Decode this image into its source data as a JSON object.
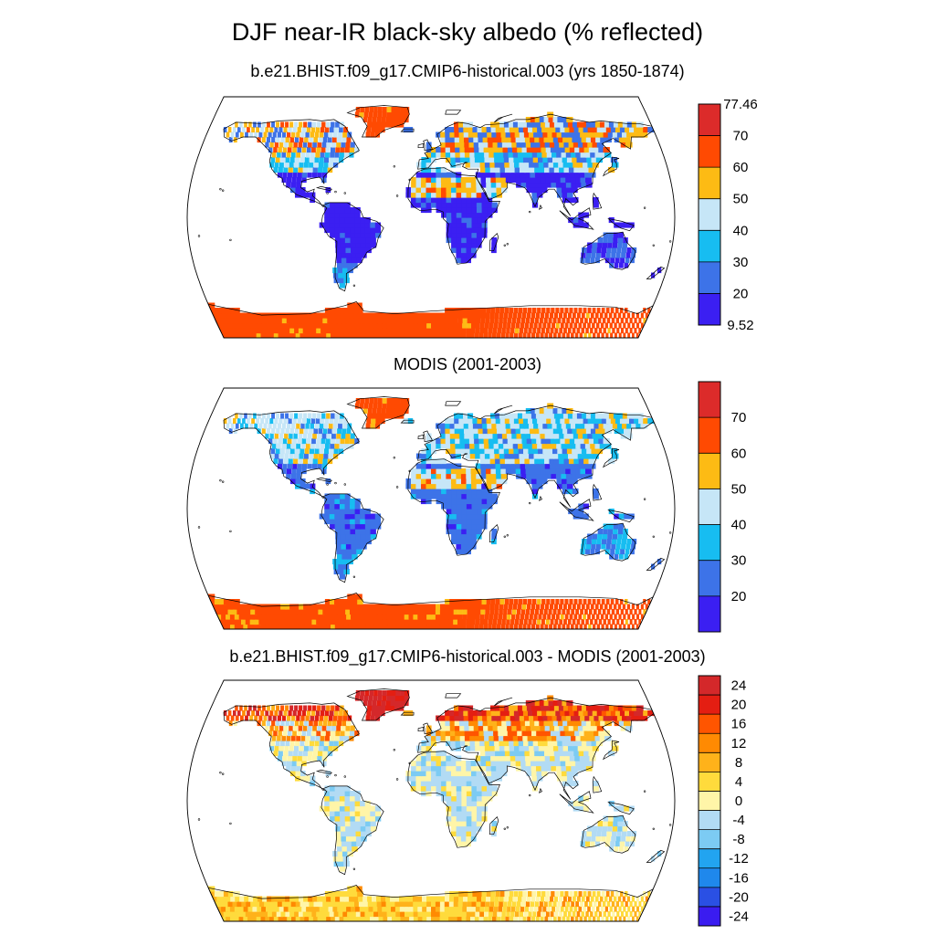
{
  "figure": {
    "title": "DJF near-IR black-sky albedo (% reflected)"
  },
  "panels": [
    {
      "title": "b.e21.BHIST.f09_g17.CMIP6-historical.003 (yrs 1850-1874)",
      "colorbar": {
        "colors": [
          "#3b1ff2",
          "#3d73e8",
          "#17bdf1",
          "#c6e6f7",
          "#fdbb14",
          "#ff4a02",
          "#dc2b2a"
        ],
        "labels": [
          "9.52",
          "20",
          "30",
          "40",
          "50",
          "60",
          "70",
          "77.46"
        ]
      }
    },
    {
      "title": "MODIS (2001-2003)",
      "colorbar": {
        "colors": [
          "#3b1ff2",
          "#3d73e8",
          "#17bdf1",
          "#c6e6f7",
          "#fdbb14",
          "#ff4a02",
          "#dc2b2a"
        ],
        "labels": [
          "20",
          "30",
          "40",
          "50",
          "60",
          "70"
        ]
      }
    },
    {
      "title": "b.e21.BHIST.f09_g17.CMIP6-historical.003 - MODIS (2001-2003)",
      "colorbar": {
        "colors": [
          "#3a1cf0",
          "#2a50e4",
          "#1f88ec",
          "#22a4f0",
          "#7ccbf3",
          "#b2dbf4",
          "#fff5a8",
          "#ffdb3c",
          "#ffb21a",
          "#ff8a02",
          "#ff5500",
          "#e41e12",
          "#d4282a"
        ],
        "labels": [
          "-24",
          "-20",
          "-16",
          "-12",
          "-8",
          "-4",
          "0",
          "4",
          "8",
          "12",
          "16",
          "20",
          "24"
        ]
      }
    }
  ]
}
